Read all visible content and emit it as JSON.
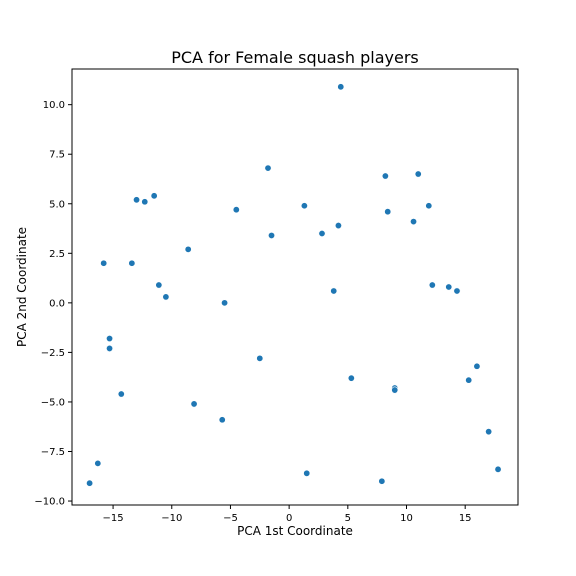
{
  "chart_data": {
    "type": "scatter",
    "title": "PCA for Female squash players",
    "xlabel": "PCA 1st Coordinate",
    "ylabel": "PCA 2nd Coordinate",
    "xlim": [
      -18.5,
      19.5
    ],
    "ylim": [
      -10.2,
      11.8
    ],
    "x_ticks": [
      -15,
      -10,
      -5,
      0,
      5,
      10,
      15
    ],
    "x_tick_labels": [
      "−15",
      "−10",
      "−5",
      "0",
      "5",
      "10",
      "15"
    ],
    "y_ticks": [
      -10,
      -7.5,
      -5,
      -2.5,
      0,
      2.5,
      5,
      7.5,
      10
    ],
    "y_tick_labels": [
      "−10.0",
      "−7.5",
      "−5.0",
      "−2.5",
      "0.0",
      "2.5",
      "5.0",
      "7.5",
      "10.0"
    ],
    "grid": false,
    "marker_color": "#1f77b4",
    "points": [
      {
        "x": 4.4,
        "y": 10.9
      },
      {
        "x": -1.8,
        "y": 6.8
      },
      {
        "x": 8.2,
        "y": 6.4
      },
      {
        "x": 11.0,
        "y": 6.5
      },
      {
        "x": -13.0,
        "y": 5.2
      },
      {
        "x": -12.3,
        "y": 5.1
      },
      {
        "x": -11.5,
        "y": 5.4
      },
      {
        "x": -4.5,
        "y": 4.7
      },
      {
        "x": 1.3,
        "y": 4.9
      },
      {
        "x": 8.4,
        "y": 4.6
      },
      {
        "x": 11.9,
        "y": 4.9
      },
      {
        "x": 10.6,
        "y": 4.1
      },
      {
        "x": 4.2,
        "y": 3.9
      },
      {
        "x": 2.8,
        "y": 3.5
      },
      {
        "x": -1.5,
        "y": 3.4
      },
      {
        "x": -8.6,
        "y": 2.7
      },
      {
        "x": -15.8,
        "y": 2.0
      },
      {
        "x": -13.4,
        "y": 2.0
      },
      {
        "x": 12.2,
        "y": 0.9
      },
      {
        "x": 13.6,
        "y": 0.8
      },
      {
        "x": 14.3,
        "y": 0.6
      },
      {
        "x": 3.8,
        "y": 0.6
      },
      {
        "x": -11.1,
        "y": 0.9
      },
      {
        "x": -10.5,
        "y": 0.3
      },
      {
        "x": -5.5,
        "y": 0.0
      },
      {
        "x": -15.3,
        "y": -1.8
      },
      {
        "x": -15.3,
        "y": -2.3
      },
      {
        "x": -2.5,
        "y": -2.8
      },
      {
        "x": 16.0,
        "y": -3.2
      },
      {
        "x": 15.3,
        "y": -3.9
      },
      {
        "x": 5.3,
        "y": -3.8
      },
      {
        "x": 9.0,
        "y": -4.3
      },
      {
        "x": 9.0,
        "y": -4.4
      },
      {
        "x": -14.3,
        "y": -4.6
      },
      {
        "x": -8.1,
        "y": -5.1
      },
      {
        "x": -5.7,
        "y": -5.9
      },
      {
        "x": 17.0,
        "y": -6.5
      },
      {
        "x": -16.3,
        "y": -8.1
      },
      {
        "x": 17.8,
        "y": -8.4
      },
      {
        "x": 1.5,
        "y": -8.6
      },
      {
        "x": -17.0,
        "y": -9.1
      },
      {
        "x": 7.9,
        "y": -9.0
      }
    ]
  }
}
